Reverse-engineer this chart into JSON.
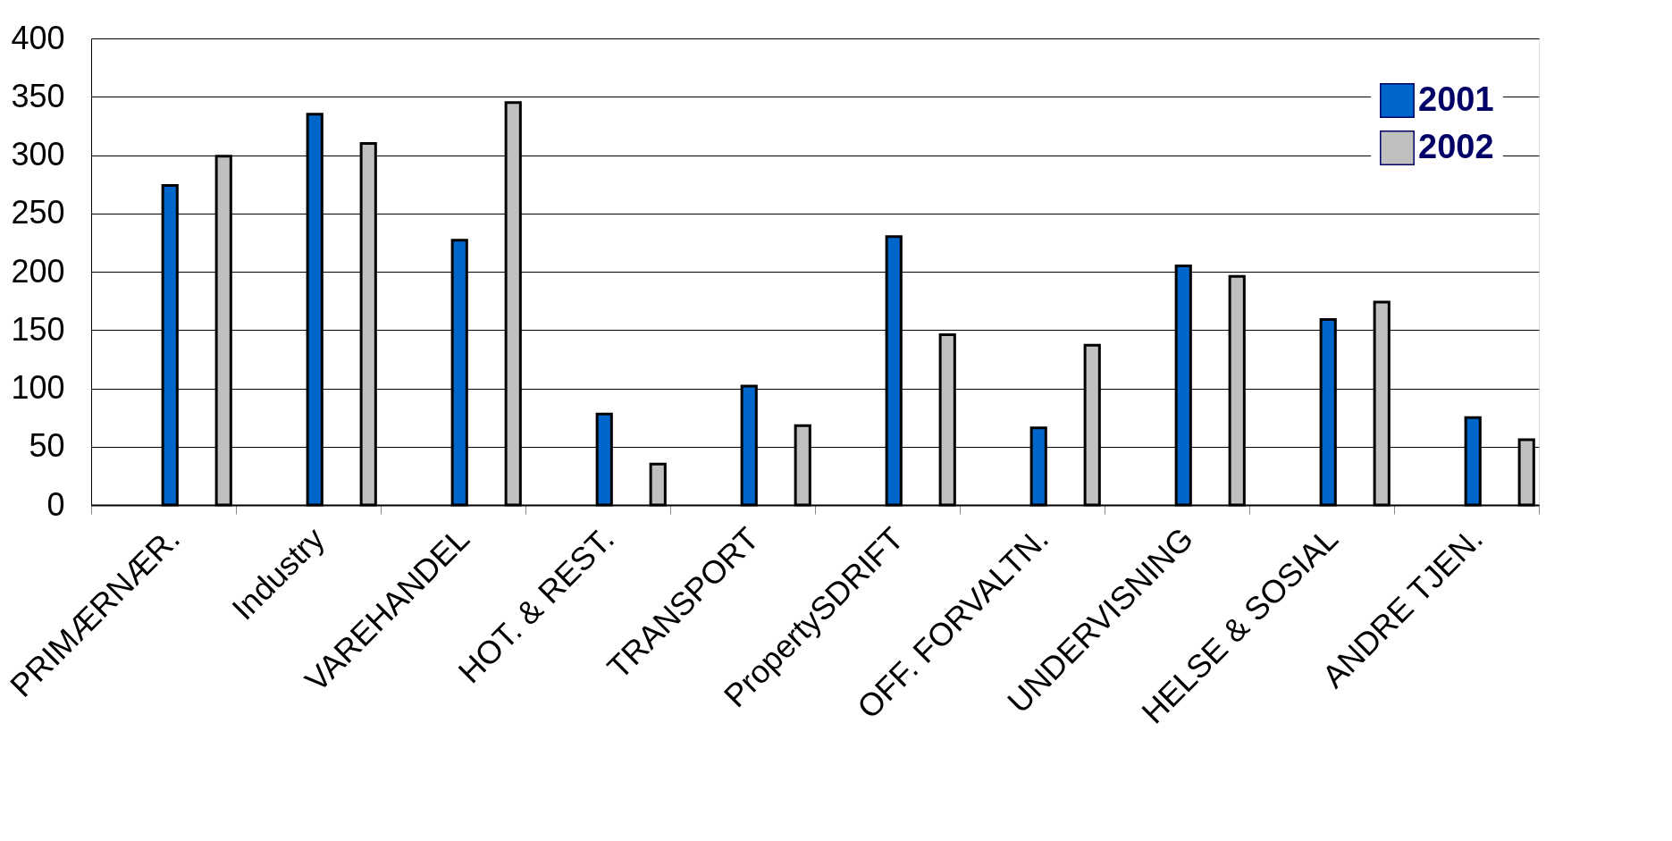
{
  "chart_data": {
    "type": "bar",
    "categories": [
      "PRIMÆRNÆR.",
      "Industry",
      "VAREHANDEL",
      "HOT. & REST.",
      "TRANSPORT",
      "PropertySDRIFT",
      "OFF. FORVALTN.",
      "UNDERVISNING",
      "HELSE & SOSIAL",
      "ANDRE TJEN."
    ],
    "series": [
      {
        "name": "2001",
        "color": "#0066cc",
        "values": [
          274,
          335,
          227,
          78,
          102,
          230,
          66,
          205,
          159,
          75
        ]
      },
      {
        "name": "2002",
        "color": "#c0c0c0",
        "values": [
          299,
          310,
          345,
          35,
          68,
          146,
          137,
          196,
          174,
          56
        ]
      }
    ],
    "ylim": [
      0,
      400
    ],
    "yticks": [
      0,
      50,
      100,
      150,
      200,
      250,
      300,
      350,
      400
    ],
    "grid": "y",
    "legend": "top right"
  }
}
